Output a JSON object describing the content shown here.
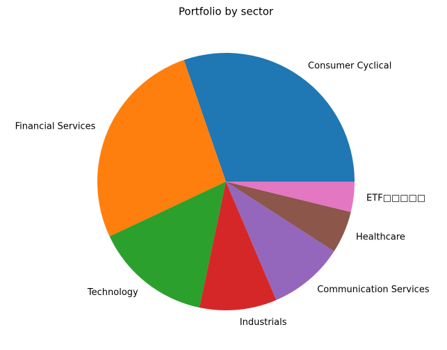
{
  "chart_data": {
    "type": "pie",
    "title": "Portfolio by sector",
    "categories": [
      "Consumer Cyclical",
      "Financial Services",
      "Technology",
      "Industrials",
      "Communication Services",
      "Healthcare",
      "ETF□□□□□"
    ],
    "values": [
      30.3,
      26.7,
      14.7,
      9.7,
      9.5,
      5.3,
      3.8
    ],
    "colors": [
      "#1f77b4",
      "#ff7f0e",
      "#2ca02c",
      "#d62728",
      "#9467bd",
      "#8c564b",
      "#e377c2"
    ],
    "start_angle": 0,
    "counterclockwise": true
  }
}
